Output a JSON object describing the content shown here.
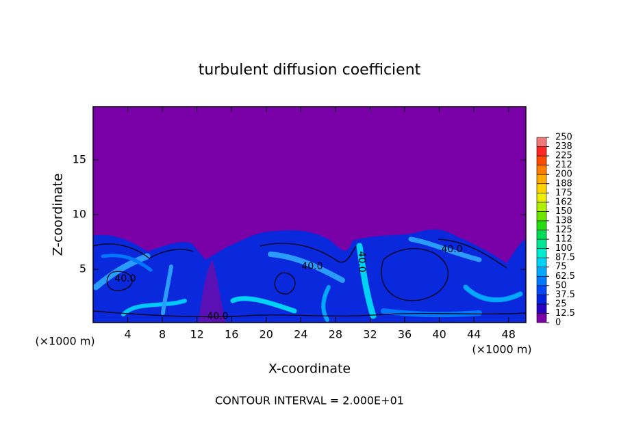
{
  "chart_data": {
    "type": "contour",
    "title": "turbulent diffusion coefficient",
    "x_label": "X-coordinate",
    "y_label": "Z-coordinate",
    "x_unit": "(×1000 m)",
    "footer": "CONTOUR INTERVAL = 2.000E+01",
    "xlim": [
      0,
      50
    ],
    "ylim": [
      0,
      20
    ],
    "xticks": [
      4,
      8,
      12,
      16,
      20,
      24,
      28,
      32,
      36,
      40,
      44,
      48
    ],
    "yticks": [
      5,
      10,
      15
    ],
    "contour_labels": [
      "40.0",
      "40.0",
      "40.0",
      "40.0",
      "40.0"
    ],
    "colorbar": {
      "ticks": [
        0,
        12.5,
        25,
        37.5,
        50,
        62.5,
        75,
        87.5,
        100,
        {
          "value": 112.5,
          "label": "112"
        },
        125,
        {
          "value": 137.5,
          "label": "138"
        },
        150,
        {
          "value": 162.5,
          "label": "162"
        },
        175,
        {
          "value": 187.5,
          "label": "188"
        },
        200,
        {
          "value": 212.5,
          "label": "212"
        },
        225,
        {
          "value": 237.5,
          "label": "238"
        },
        250
      ],
      "colors": [
        "#7a00a8",
        "#2a00c4",
        "#0022dc",
        "#0048f5",
        "#0078ff",
        "#00a8ff",
        "#00d2f5",
        "#00ecd0",
        "#00e896",
        "#00dc5a",
        "#28dc14",
        "#6ee600",
        "#b0ef00",
        "#ecf000",
        "#ffd200",
        "#ffac00",
        "#ff7c00",
        "#ff4a00",
        "#ff2626",
        "#f07a7a"
      ]
    }
  }
}
